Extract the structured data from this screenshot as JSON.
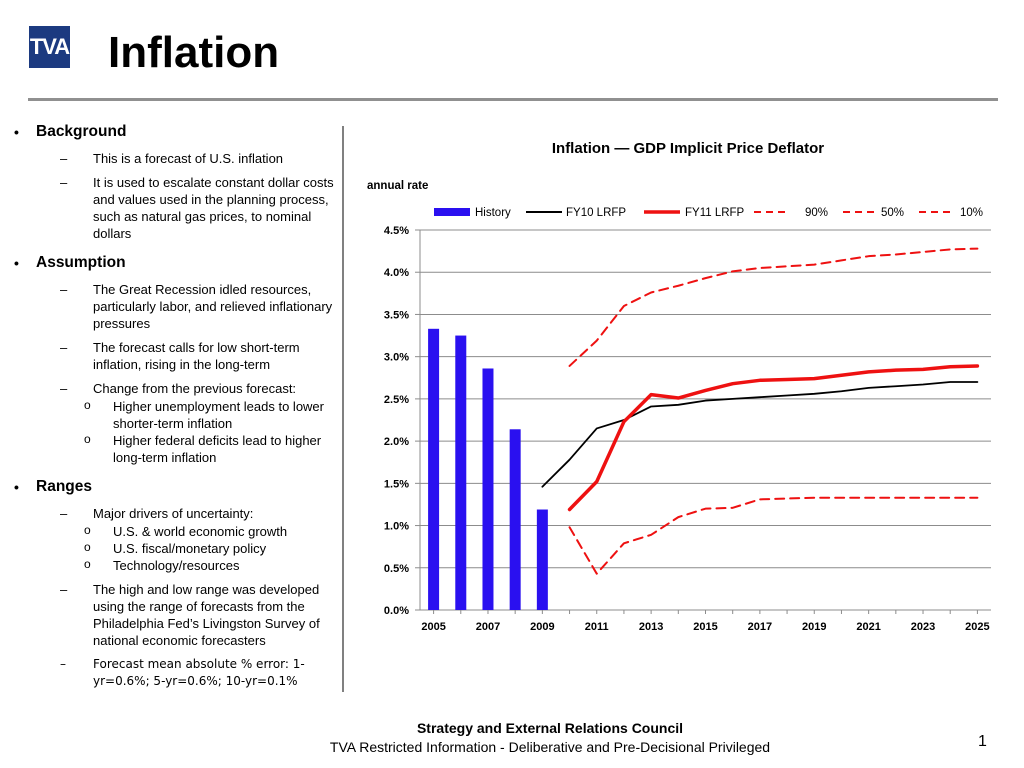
{
  "header": {
    "logo_text": "TVA",
    "title": "Inflation"
  },
  "sections": [
    {
      "heading": "Background",
      "items": [
        {
          "text": "This is a forecast of U.S. inflation",
          "subs": []
        },
        {
          "text": "It is used to escalate constant dollar costs and values used in the planning process, such as natural gas prices, to nominal dollars",
          "subs": []
        }
      ]
    },
    {
      "heading": "Assumption",
      "items": [
        {
          "text": "The Great Recession idled resources, particularly labor, and relieved inflationary pressures",
          "subs": []
        },
        {
          "text": "The forecast calls for low short-term inflation, rising in the long-term",
          "subs": []
        },
        {
          "text": "Change from the previous forecast:",
          "subs": [
            "Higher unemployment leads to lower shorter-term inflation",
            "Higher federal deficits lead to higher long-term inflation"
          ]
        }
      ]
    },
    {
      "heading": "Ranges",
      "items": [
        {
          "text": "Major drivers of uncertainty:",
          "subs": [
            "U.S. & world economic growth",
            "U.S. fiscal/monetary policy",
            "Technology/resources"
          ]
        },
        {
          "text": "The high and low range was developed using the range of forecasts from the Philadelphia Fed’s Livingston Survey of national economic forecasters",
          "subs": []
        },
        {
          "text": "Forecast mean absolute % error: 1-yr=0.6%; 5-yr=0.6%; 10-yr=0.1%",
          "subs": [],
          "mono": true
        }
      ]
    }
  ],
  "chart_data": {
    "type": "bar",
    "title": "Inflation — GDP Implicit Price Deflator",
    "ylabel": "annual rate",
    "ylim": [
      0,
      4.5
    ],
    "yticks": [
      "0.0%",
      "0.5%",
      "1.0%",
      "1.5%",
      "2.0%",
      "2.5%",
      "3.0%",
      "3.5%",
      "4.0%",
      "4.5%"
    ],
    "xlim": [
      2005,
      2025
    ],
    "xticks": [
      "2005",
      "2007",
      "2009",
      "2011",
      "2013",
      "2015",
      "2017",
      "2019",
      "2021",
      "2023",
      "2025"
    ],
    "legend_position": "top",
    "series": [
      {
        "name": "History",
        "kind": "bar",
        "color": "#2a10f0",
        "x": [
          2005,
          2006,
          2007,
          2008,
          2009
        ],
        "values": [
          3.33,
          3.25,
          2.86,
          2.14,
          1.19
        ]
      },
      {
        "name": "FY10 LRFP",
        "kind": "line",
        "color": "#000000",
        "dash": false,
        "x": [
          2009,
          2010,
          2011,
          2012,
          2013,
          2014,
          2015,
          2016,
          2017,
          2018,
          2019,
          2020,
          2021,
          2022,
          2023,
          2024,
          2025
        ],
        "values": [
          1.46,
          1.78,
          2.15,
          2.25,
          2.41,
          2.43,
          2.48,
          2.5,
          2.52,
          2.54,
          2.56,
          2.59,
          2.63,
          2.65,
          2.67,
          2.7,
          2.7
        ]
      },
      {
        "name": "FY11 LRFP",
        "kind": "line",
        "color": "#ee1111",
        "dash": false,
        "x": [
          2010,
          2011,
          2012,
          2013,
          2014,
          2015,
          2016,
          2017,
          2018,
          2019,
          2020,
          2021,
          2022,
          2023,
          2024,
          2025
        ],
        "values": [
          1.19,
          1.52,
          2.23,
          2.55,
          2.51,
          2.6,
          2.68,
          2.72,
          2.73,
          2.74,
          2.78,
          2.82,
          2.84,
          2.85,
          2.88,
          2.89
        ]
      },
      {
        "name": "90%",
        "kind": "line",
        "color": "#ee1111",
        "dash": true,
        "x": [
          2010,
          2011,
          2012,
          2013,
          2014,
          2015,
          2016,
          2017,
          2018,
          2019,
          2020,
          2021,
          2022,
          2023,
          2024,
          2025
        ],
        "values": [
          2.89,
          3.19,
          3.6,
          3.76,
          3.84,
          3.93,
          4.01,
          4.05,
          4.07,
          4.09,
          4.14,
          4.19,
          4.21,
          4.24,
          4.27,
          4.28
        ]
      },
      {
        "name": "50%",
        "kind": "line",
        "color": "#ee1111",
        "dash": true,
        "x": [],
        "values": []
      },
      {
        "name": "10%",
        "kind": "line",
        "color": "#ee1111",
        "dash": true,
        "x": [
          2010,
          2011,
          2012,
          2013,
          2014,
          2015,
          2016,
          2017,
          2018,
          2019,
          2020,
          2021,
          2022,
          2023,
          2024,
          2025
        ],
        "values": [
          0.98,
          0.43,
          0.79,
          0.89,
          1.1,
          1.2,
          1.21,
          1.31,
          1.32,
          1.33,
          1.33,
          1.33,
          1.33,
          1.33,
          1.33,
          1.33
        ]
      }
    ],
    "grid": "horizontal"
  },
  "footer": {
    "line1": "Strategy and External Relations Council",
    "line2": "TVA Restricted Information - Deliberative and Pre-Decisional Privileged",
    "page_number": "1"
  }
}
